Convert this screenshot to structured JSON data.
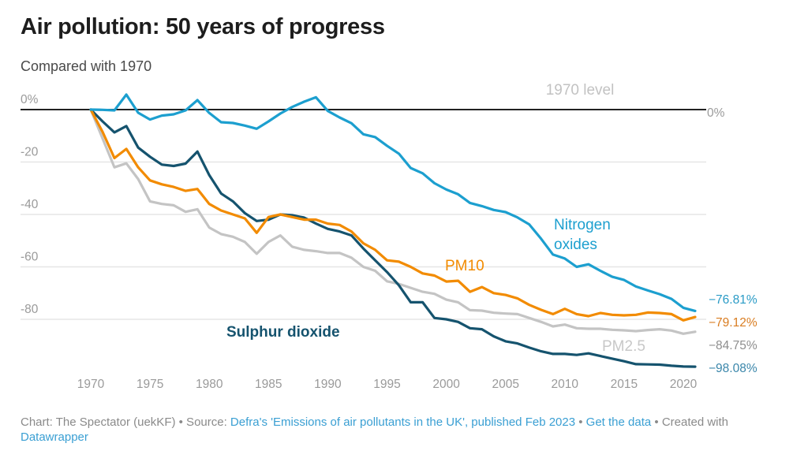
{
  "header": {
    "title": "Air pollution: 50 years of progress",
    "subtitle": "Compared with 1970"
  },
  "footer": {
    "chart_credit": "Chart: The Spectator (uekKF) • Source: ",
    "source_link": "Defra's 'Emissions of air pollutants in the UK', published Feb 2023",
    "sep1": " • ",
    "data_link": "Get the data",
    "created": " • Created with ",
    "tool_link": "Datawrapper"
  },
  "chart_data": {
    "type": "line",
    "title": "Air pollution: 50 years of progress",
    "subtitle": "Compared with 1970",
    "xlabel": "",
    "ylabel": "",
    "xlim": [
      1970,
      2021
    ],
    "ylim": [
      -100,
      0
    ],
    "x_ticks": [
      1970,
      1975,
      1980,
      1985,
      1990,
      1995,
      2000,
      2005,
      2010,
      2015,
      2020
    ],
    "y_ticks": [
      0,
      -20,
      -40,
      -60,
      -80
    ],
    "y_tick_labels": [
      "0%",
      "-20",
      "-40",
      "-60",
      "-80"
    ],
    "grid": true,
    "reference_line": {
      "value": 0,
      "label": "1970 level",
      "end_label": "0%"
    },
    "x": [
      1970,
      1971,
      1972,
      1973,
      1974,
      1975,
      1976,
      1977,
      1978,
      1979,
      1980,
      1981,
      1982,
      1983,
      1984,
      1985,
      1986,
      1987,
      1988,
      1989,
      1990,
      1991,
      1992,
      1993,
      1994,
      1995,
      1996,
      1997,
      1998,
      1999,
      2000,
      2001,
      2002,
      2003,
      2004,
      2005,
      2006,
      2007,
      2008,
      2009,
      2010,
      2011,
      2012,
      2013,
      2014,
      2015,
      2016,
      2017,
      2018,
      2019,
      2020,
      2021
    ],
    "series": [
      {
        "name": "Nitrogen oxides",
        "label": "Nitrogen oxides",
        "color": "#1c9fcf",
        "end_label": "−76.81%",
        "end_label_color": "#2a9bc6",
        "values": [
          0,
          -0.1,
          -0.3,
          5.7,
          -1.2,
          -3.8,
          -2.3,
          -1.8,
          -0.3,
          3.6,
          -1.3,
          -4.8,
          -5.1,
          -6.1,
          -7.3,
          -4.5,
          -1.5,
          1.0,
          3.0,
          4.7,
          -0.5,
          -3.0,
          -5.2,
          -9.4,
          -10.5,
          -13.8,
          -16.8,
          -22.3,
          -24.3,
          -28.1,
          -30.5,
          -32.3,
          -35.6,
          -36.8,
          -38.3,
          -39.1,
          -41.1,
          -43.8,
          -49.3,
          -55.3,
          -56.8,
          -60.0,
          -59.0,
          -61.5,
          -63.8,
          -65.0,
          -67.5,
          -69.0,
          -70.4,
          -72.2,
          -75.6,
          -76.81
        ]
      },
      {
        "name": "PM10",
        "label": "PM10",
        "color": "#f28b00",
        "end_label": "−79.12%",
        "end_label_color": "#d97c20",
        "values": [
          0,
          -8.5,
          -18.5,
          -15.0,
          -22.0,
          -27.0,
          -28.5,
          -29.5,
          -31.0,
          -30.3,
          -36.0,
          -38.5,
          -40.0,
          -41.5,
          -47.0,
          -41.0,
          -40.0,
          -41.0,
          -42.0,
          -42.0,
          -43.5,
          -44.0,
          -46.5,
          -51.0,
          -53.5,
          -57.5,
          -58.0,
          -60.0,
          -62.5,
          -63.3,
          -65.6,
          -65.3,
          -69.5,
          -67.7,
          -70.0,
          -70.7,
          -72.0,
          -74.5,
          -76.4,
          -78.0,
          -76.0,
          -78.0,
          -78.8,
          -77.6,
          -78.3,
          -78.5,
          -78.3,
          -77.4,
          -77.6,
          -78.0,
          -80.4,
          -79.12
        ]
      },
      {
        "name": "PM2.5",
        "label": "PM2.5",
        "color": "#c4c4c4",
        "end_label": "−84.75%",
        "end_label_color": "#8e8e8e",
        "values": [
          0,
          -11.0,
          -22.0,
          -20.5,
          -26.5,
          -35.0,
          -36.0,
          -36.5,
          -39.0,
          -38.0,
          -45.0,
          -47.5,
          -48.5,
          -50.5,
          -55.0,
          -50.5,
          -48.0,
          -52.3,
          -53.5,
          -54.0,
          -54.7,
          -54.7,
          -56.5,
          -60.0,
          -61.5,
          -65.5,
          -66.5,
          -68.0,
          -69.5,
          -70.3,
          -72.5,
          -73.5,
          -76.5,
          -76.7,
          -77.5,
          -77.8,
          -78.0,
          -79.5,
          -81.0,
          -82.7,
          -82.0,
          -83.4,
          -83.6,
          -83.6,
          -84.0,
          -84.2,
          -84.5,
          -84.1,
          -83.8,
          -84.3,
          -85.5,
          -84.75
        ]
      },
      {
        "name": "Sulphur dioxide",
        "label": "Sulphur dioxide",
        "color": "#15536e",
        "end_label": "−98.08%",
        "end_label_color": "#3a86aa",
        "values": [
          0,
          -4.5,
          -8.7,
          -6.3,
          -14.5,
          -18.0,
          -21.0,
          -21.5,
          -20.6,
          -16.0,
          -25.0,
          -32.0,
          -35.0,
          -39.5,
          -42.5,
          -42.0,
          -40.0,
          -40.3,
          -41.2,
          -43.5,
          -45.5,
          -46.5,
          -48.0,
          -53.0,
          -57.5,
          -62.0,
          -67.0,
          -73.5,
          -73.5,
          -79.5,
          -80.0,
          -81.0,
          -83.4,
          -83.8,
          -86.5,
          -88.4,
          -89.2,
          -90.8,
          -92.2,
          -93.2,
          -93.2,
          -93.6,
          -93.0,
          -94.0,
          -95.0,
          -96.0,
          -97.1,
          -97.2,
          -97.3,
          -97.7,
          -98.0,
          -98.08
        ]
      }
    ]
  }
}
